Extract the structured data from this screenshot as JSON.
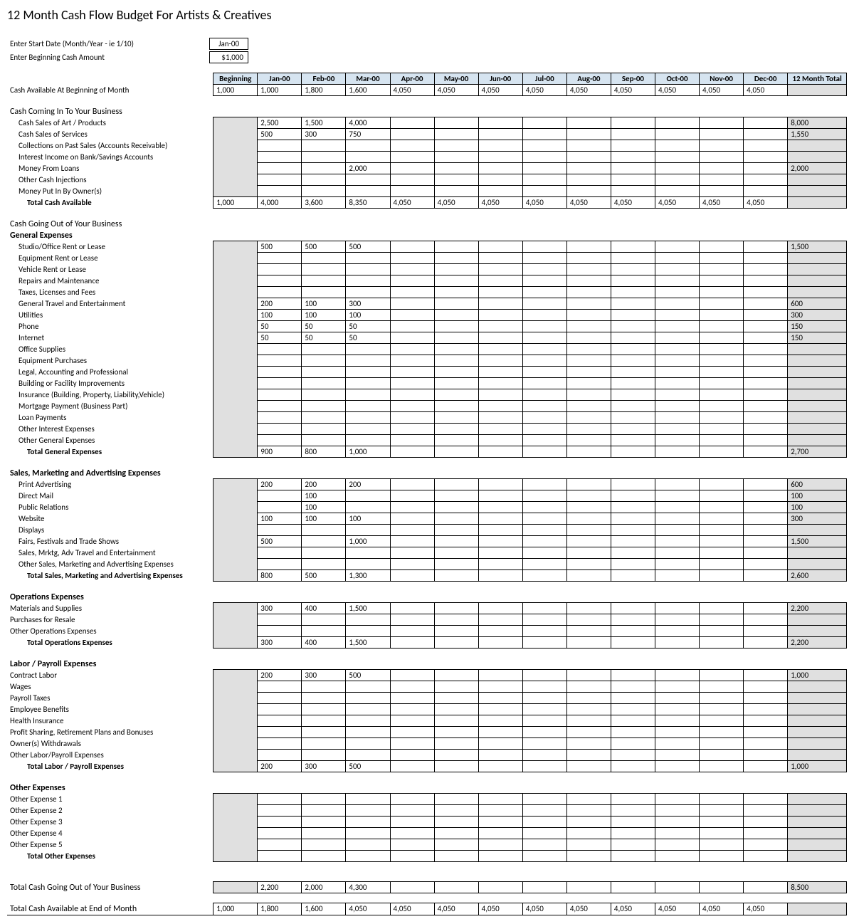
{
  "title": "12 Month Cash Flow Budget For Artists & Creatives",
  "inputs": {
    "start_date_label": "Enter Start Date (Month/Year - ie 1/10)",
    "start_date_value": "Jan-00",
    "begin_cash_label": "Enter Beginning Cash Amount",
    "begin_cash_value": "$1,000"
  },
  "columns": [
    "Beginning",
    "Jan-00",
    "Feb-00",
    "Mar-00",
    "Apr-00",
    "May-00",
    "Jun-00",
    "Jul-00",
    "Aug-00",
    "Sep-00",
    "Oct-00",
    "Nov-00",
    "Dec-00",
    "12 Month Total"
  ],
  "cash_available": {
    "label": "Cash Available At Beginning of Month",
    "values": [
      "1,000",
      "1,000",
      "1,800",
      "1,600",
      "4,050",
      "4,050",
      "4,050",
      "4,050",
      "4,050",
      "4,050",
      "4,050",
      "4,050",
      "4,050",
      ""
    ]
  },
  "cash_in": {
    "title": "Cash Coming In To Your Business",
    "rows": [
      {
        "label": "Cash Sales of Art / Products",
        "values": [
          "",
          "2,500",
          "1,500",
          "4,000",
          "",
          "",
          "",
          "",
          "",
          "",
          "",
          "",
          "",
          "8,000"
        ]
      },
      {
        "label": "Cash Sales of Services",
        "values": [
          "",
          "500",
          "300",
          "750",
          "",
          "",
          "",
          "",
          "",
          "",
          "",
          "",
          "",
          "1,550"
        ]
      },
      {
        "label": "Collections on Past Sales (Accounts Receivable)",
        "values": [
          "",
          "",
          "",
          "",
          "",
          "",
          "",
          "",
          "",
          "",
          "",
          "",
          "",
          ""
        ]
      },
      {
        "label": "Interest Income on Bank/Savings Accounts",
        "values": [
          "",
          "",
          "",
          "",
          "",
          "",
          "",
          "",
          "",
          "",
          "",
          "",
          "",
          ""
        ]
      },
      {
        "label": "Money From Loans",
        "values": [
          "",
          "",
          "",
          "2,000",
          "",
          "",
          "",
          "",
          "",
          "",
          "",
          "",
          "",
          "2,000"
        ]
      },
      {
        "label": "Other Cash Injections",
        "values": [
          "",
          "",
          "",
          "",
          "",
          "",
          "",
          "",
          "",
          "",
          "",
          "",
          "",
          ""
        ]
      },
      {
        "label": "Money Put In By Owner(s)",
        "values": [
          "",
          "",
          "",
          "",
          "",
          "",
          "",
          "",
          "",
          "",
          "",
          "",
          "",
          ""
        ]
      }
    ],
    "total": {
      "label": "Total Cash Available",
      "values": [
        "1,000",
        "4,000",
        "3,600",
        "8,350",
        "4,050",
        "4,050",
        "4,050",
        "4,050",
        "4,050",
        "4,050",
        "4,050",
        "4,050",
        "4,050",
        ""
      ]
    }
  },
  "cash_out_title": "Cash Going Out of Your Business",
  "general": {
    "title": "General Expenses",
    "rows": [
      {
        "label": "Studio/Office Rent or Lease",
        "values": [
          "",
          "500",
          "500",
          "500",
          "",
          "",
          "",
          "",
          "",
          "",
          "",
          "",
          "",
          "1,500"
        ]
      },
      {
        "label": "Equipment Rent or Lease",
        "values": [
          "",
          "",
          "",
          "",
          "",
          "",
          "",
          "",
          "",
          "",
          "",
          "",
          "",
          ""
        ]
      },
      {
        "label": "Vehicle Rent or Lease",
        "values": [
          "",
          "",
          "",
          "",
          "",
          "",
          "",
          "",
          "",
          "",
          "",
          "",
          "",
          ""
        ]
      },
      {
        "label": "Repairs and Maintenance",
        "values": [
          "",
          "",
          "",
          "",
          "",
          "",
          "",
          "",
          "",
          "",
          "",
          "",
          "",
          ""
        ]
      },
      {
        "label": "Taxes, Licenses and Fees",
        "values": [
          "",
          "",
          "",
          "",
          "",
          "",
          "",
          "",
          "",
          "",
          "",
          "",
          "",
          ""
        ]
      },
      {
        "label": "General Travel and Entertainment",
        "values": [
          "",
          "200",
          "100",
          "300",
          "",
          "",
          "",
          "",
          "",
          "",
          "",
          "",
          "",
          "600"
        ]
      },
      {
        "label": "Utilities",
        "values": [
          "",
          "100",
          "100",
          "100",
          "",
          "",
          "",
          "",
          "",
          "",
          "",
          "",
          "",
          "300"
        ]
      },
      {
        "label": "Phone",
        "values": [
          "",
          "50",
          "50",
          "50",
          "",
          "",
          "",
          "",
          "",
          "",
          "",
          "",
          "",
          "150"
        ]
      },
      {
        "label": "Internet",
        "values": [
          "",
          "50",
          "50",
          "50",
          "",
          "",
          "",
          "",
          "",
          "",
          "",
          "",
          "",
          "150"
        ]
      },
      {
        "label": "Office Supplies",
        "values": [
          "",
          "",
          "",
          "",
          "",
          "",
          "",
          "",
          "",
          "",
          "",
          "",
          "",
          ""
        ]
      },
      {
        "label": "Equipment Purchases",
        "values": [
          "",
          "",
          "",
          "",
          "",
          "",
          "",
          "",
          "",
          "",
          "",
          "",
          "",
          ""
        ]
      },
      {
        "label": "Legal, Accounting and Professional",
        "values": [
          "",
          "",
          "",
          "",
          "",
          "",
          "",
          "",
          "",
          "",
          "",
          "",
          "",
          ""
        ]
      },
      {
        "label": "Building or Facility Improvements",
        "values": [
          "",
          "",
          "",
          "",
          "",
          "",
          "",
          "",
          "",
          "",
          "",
          "",
          "",
          ""
        ]
      },
      {
        "label": "Insurance (Building, Property, Liability,Vehicle)",
        "values": [
          "",
          "",
          "",
          "",
          "",
          "",
          "",
          "",
          "",
          "",
          "",
          "",
          "",
          ""
        ]
      },
      {
        "label": "Mortgage Payment (Business Part)",
        "values": [
          "",
          "",
          "",
          "",
          "",
          "",
          "",
          "",
          "",
          "",
          "",
          "",
          "",
          ""
        ]
      },
      {
        "label": "Loan Payments",
        "values": [
          "",
          "",
          "",
          "",
          "",
          "",
          "",
          "",
          "",
          "",
          "",
          "",
          "",
          ""
        ]
      },
      {
        "label": "Other Interest Expenses",
        "values": [
          "",
          "",
          "",
          "",
          "",
          "",
          "",
          "",
          "",
          "",
          "",
          "",
          "",
          ""
        ]
      },
      {
        "label": "Other General Expenses",
        "values": [
          "",
          "",
          "",
          "",
          "",
          "",
          "",
          "",
          "",
          "",
          "",
          "",
          "",
          ""
        ]
      }
    ],
    "total": {
      "label": "Total General Expenses",
      "values": [
        "",
        "900",
        "800",
        "1,000",
        "",
        "",
        "",
        "",
        "",
        "",
        "",
        "",
        "",
        "2,700"
      ]
    }
  },
  "sales": {
    "title": "Sales, Marketing and Advertising Expenses",
    "rows": [
      {
        "label": "Print Advertising",
        "values": [
          "",
          "200",
          "200",
          "200",
          "",
          "",
          "",
          "",
          "",
          "",
          "",
          "",
          "",
          "600"
        ]
      },
      {
        "label": "Direct Mail",
        "values": [
          "",
          "",
          "100",
          "",
          "",
          "",
          "",
          "",
          "",
          "",
          "",
          "",
          "",
          "100"
        ]
      },
      {
        "label": "Public Relations",
        "values": [
          "",
          "",
          "100",
          "",
          "",
          "",
          "",
          "",
          "",
          "",
          "",
          "",
          "",
          "100"
        ]
      },
      {
        "label": "Website",
        "values": [
          "",
          "100",
          "100",
          "100",
          "",
          "",
          "",
          "",
          "",
          "",
          "",
          "",
          "",
          "300"
        ]
      },
      {
        "label": "Displays",
        "values": [
          "",
          "",
          "",
          "",
          "",
          "",
          "",
          "",
          "",
          "",
          "",
          "",
          "",
          ""
        ]
      },
      {
        "label": "Fairs, Festivals and Trade Shows",
        "values": [
          "",
          "500",
          "",
          "1,000",
          "",
          "",
          "",
          "",
          "",
          "",
          "",
          "",
          "",
          "1,500"
        ]
      },
      {
        "label": "Sales, Mrktg, Adv Travel and Entertainment",
        "values": [
          "",
          "",
          "",
          "",
          "",
          "",
          "",
          "",
          "",
          "",
          "",
          "",
          "",
          ""
        ]
      },
      {
        "label": "Other Sales, Marketing and Advertising Expenses",
        "values": [
          "",
          "",
          "",
          "",
          "",
          "",
          "",
          "",
          "",
          "",
          "",
          "",
          "",
          ""
        ]
      }
    ],
    "total": {
      "label": "Total Sales, Marketing and Advertising Expenses",
      "values": [
        "",
        "800",
        "500",
        "1,300",
        "",
        "",
        "",
        "",
        "",
        "",
        "",
        "",
        "",
        "2,600"
      ]
    }
  },
  "ops": {
    "title": "Operations Expenses",
    "rows": [
      {
        "label": "Materials and Supplies",
        "values": [
          "",
          "300",
          "400",
          "1,500",
          "",
          "",
          "",
          "",
          "",
          "",
          "",
          "",
          "",
          "2,200"
        ]
      },
      {
        "label": "Purchases for Resale",
        "values": [
          "",
          "",
          "",
          "",
          "",
          "",
          "",
          "",
          "",
          "",
          "",
          "",
          "",
          ""
        ]
      },
      {
        "label": "Other Operations Expenses",
        "values": [
          "",
          "",
          "",
          "",
          "",
          "",
          "",
          "",
          "",
          "",
          "",
          "",
          "",
          ""
        ]
      }
    ],
    "total": {
      "label": "Total Operations Expenses",
      "values": [
        "",
        "300",
        "400",
        "1,500",
        "",
        "",
        "",
        "",
        "",
        "",
        "",
        "",
        "",
        "2,200"
      ]
    }
  },
  "labor": {
    "title": "Labor / Payroll Expenses",
    "rows": [
      {
        "label": "Contract Labor",
        "values": [
          "",
          "200",
          "300",
          "500",
          "",
          "",
          "",
          "",
          "",
          "",
          "",
          "",
          "",
          "1,000"
        ]
      },
      {
        "label": "Wages",
        "values": [
          "",
          "",
          "",
          "",
          "",
          "",
          "",
          "",
          "",
          "",
          "",
          "",
          "",
          ""
        ]
      },
      {
        "label": "Payroll Taxes",
        "values": [
          "",
          "",
          "",
          "",
          "",
          "",
          "",
          "",
          "",
          "",
          "",
          "",
          "",
          ""
        ]
      },
      {
        "label": "Employee Benefits",
        "values": [
          "",
          "",
          "",
          "",
          "",
          "",
          "",
          "",
          "",
          "",
          "",
          "",
          "",
          ""
        ]
      },
      {
        "label": "Health Insurance",
        "values": [
          "",
          "",
          "",
          "",
          "",
          "",
          "",
          "",
          "",
          "",
          "",
          "",
          "",
          ""
        ]
      },
      {
        "label": "Profit Sharing, Retirement Plans and Bonuses",
        "values": [
          "",
          "",
          "",
          "",
          "",
          "",
          "",
          "",
          "",
          "",
          "",
          "",
          "",
          ""
        ]
      },
      {
        "label": "Owner(s) Withdrawals",
        "values": [
          "",
          "",
          "",
          "",
          "",
          "",
          "",
          "",
          "",
          "",
          "",
          "",
          "",
          ""
        ]
      },
      {
        "label": "Other Labor/Payroll Expenses",
        "values": [
          "",
          "",
          "",
          "",
          "",
          "",
          "",
          "",
          "",
          "",
          "",
          "",
          "",
          ""
        ]
      }
    ],
    "total": {
      "label": "Total Labor / Payroll Expenses",
      "values": [
        "",
        "200",
        "300",
        "500",
        "",
        "",
        "",
        "",
        "",
        "",
        "",
        "",
        "",
        "1,000"
      ]
    }
  },
  "other": {
    "title": "Other Expenses",
    "rows": [
      {
        "label": "Other Expense 1",
        "values": [
          "",
          "",
          "",
          "",
          "",
          "",
          "",
          "",
          "",
          "",
          "",
          "",
          "",
          ""
        ]
      },
      {
        "label": "Other Expense 2",
        "values": [
          "",
          "",
          "",
          "",
          "",
          "",
          "",
          "",
          "",
          "",
          "",
          "",
          "",
          ""
        ]
      },
      {
        "label": "Other Expense 3",
        "values": [
          "",
          "",
          "",
          "",
          "",
          "",
          "",
          "",
          "",
          "",
          "",
          "",
          "",
          ""
        ]
      },
      {
        "label": "Other Expense 4",
        "values": [
          "",
          "",
          "",
          "",
          "",
          "",
          "",
          "",
          "",
          "",
          "",
          "",
          "",
          ""
        ]
      },
      {
        "label": "Other Expense 5",
        "values": [
          "",
          "",
          "",
          "",
          "",
          "",
          "",
          "",
          "",
          "",
          "",
          "",
          "",
          ""
        ]
      }
    ],
    "total": {
      "label": "Total Other Expenses",
      "values": [
        "",
        "",
        "",
        "",
        "",
        "",
        "",
        "",
        "",
        "",
        "",
        "",
        "",
        ""
      ]
    }
  },
  "total_out": {
    "label": "Total Cash Going Out of Your Business",
    "values": [
      "",
      "2,200",
      "2,000",
      "4,300",
      "",
      "",
      "",
      "",
      "",
      "",
      "",
      "",
      "",
      "8,500"
    ]
  },
  "end_cash": {
    "label": "Total Cash Available at End of Month",
    "values": [
      "1,000",
      "1,800",
      "1,600",
      "4,050",
      "4,050",
      "4,050",
      "4,050",
      "4,050",
      "4,050",
      "4,050",
      "4,050",
      "4,050",
      "4,050",
      ""
    ]
  }
}
